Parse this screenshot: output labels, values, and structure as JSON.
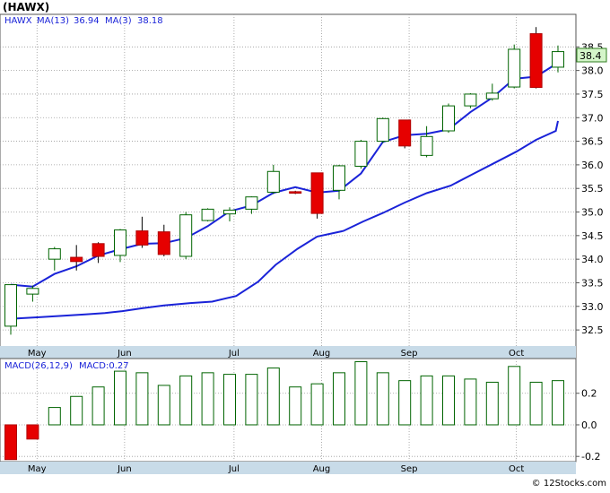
{
  "title": "(HAWX)",
  "legend": {
    "symbol": "HAWX",
    "ma13_label": "MA(13)",
    "ma13_value": "36.94",
    "ma3_label": "MA(3)",
    "ma3_value": "38.18"
  },
  "last_price_label": "38.4",
  "macd_legend": {
    "label": "MACD(26,12,9)",
    "value_label": "MACD:0.27"
  },
  "copyright": "© 12Stocks.com",
  "colors": {
    "up_candle": "#006400",
    "down_candle": "#e60000",
    "ma_line": "#1a23d8",
    "legend_text": "#1a23d8",
    "macd_bar": "#006400",
    "macd_negative": "#e60000",
    "axis_strip": "#c8dbe8"
  },
  "chart_data": [
    {
      "type": "candlestick",
      "x_labels": [
        "May",
        "Jun",
        "Jul",
        "Aug",
        "Sep",
        "Oct"
      ],
      "x_label_index": [
        1.2,
        5.2,
        10.2,
        14.2,
        18.2,
        23.1
      ],
      "y_ticks": [
        32.5,
        33.0,
        33.5,
        34.0,
        34.5,
        35.0,
        35.5,
        36.0,
        36.5,
        37.0,
        37.5,
        38.0,
        38.5
      ],
      "ylim": [
        32.16,
        39.19
      ],
      "candles": [
        {
          "o": 32.58,
          "h": 33.46,
          "l": 32.4,
          "c": 33.46
        },
        {
          "o": 33.26,
          "h": 33.44,
          "l": 33.1,
          "c": 33.38
        },
        {
          "o": 34.0,
          "h": 34.26,
          "l": 33.76,
          "c": 34.22
        },
        {
          "o": 34.04,
          "h": 34.3,
          "l": 33.76,
          "c": 33.95
        },
        {
          "o": 34.33,
          "h": 34.36,
          "l": 33.92,
          "c": 34.06
        },
        {
          "o": 34.08,
          "h": 34.64,
          "l": 33.94,
          "c": 34.62
        },
        {
          "o": 34.6,
          "h": 34.9,
          "l": 34.24,
          "c": 34.3
        },
        {
          "o": 34.58,
          "h": 34.73,
          "l": 34.06,
          "c": 34.1
        },
        {
          "o": 34.06,
          "h": 35.0,
          "l": 34.0,
          "c": 34.94
        },
        {
          "o": 34.82,
          "h": 35.08,
          "l": 34.8,
          "c": 35.06
        },
        {
          "o": 34.96,
          "h": 35.1,
          "l": 34.8,
          "c": 35.04
        },
        {
          "o": 35.06,
          "h": 35.33,
          "l": 34.96,
          "c": 35.32
        },
        {
          "o": 35.42,
          "h": 36.0,
          "l": 35.38,
          "c": 35.86
        },
        {
          "o": 35.43,
          "h": 35.45,
          "l": 35.38,
          "c": 35.4
        },
        {
          "o": 35.83,
          "h": 35.83,
          "l": 34.86,
          "c": 34.97
        },
        {
          "o": 35.46,
          "h": 36.0,
          "l": 35.27,
          "c": 35.98
        },
        {
          "o": 35.97,
          "h": 36.53,
          "l": 35.92,
          "c": 36.5
        },
        {
          "o": 36.5,
          "h": 37.0,
          "l": 36.46,
          "c": 36.98
        },
        {
          "o": 36.95,
          "h": 36.95,
          "l": 36.35,
          "c": 36.4
        },
        {
          "o": 36.2,
          "h": 36.82,
          "l": 36.16,
          "c": 36.6
        },
        {
          "o": 36.72,
          "h": 37.3,
          "l": 36.68,
          "c": 37.25
        },
        {
          "o": 37.25,
          "h": 37.52,
          "l": 37.2,
          "c": 37.5
        },
        {
          "o": 37.4,
          "h": 37.72,
          "l": 37.36,
          "c": 37.52
        },
        {
          "o": 37.65,
          "h": 38.55,
          "l": 37.62,
          "c": 38.45
        },
        {
          "o": 38.78,
          "h": 38.92,
          "l": 37.62,
          "c": 37.64
        },
        {
          "o": 38.07,
          "h": 38.53,
          "l": 37.96,
          "c": 38.4
        }
      ],
      "ma13": [
        32.74,
        32.77,
        32.8,
        32.83,
        32.86,
        32.9,
        32.96,
        33.02,
        33.07,
        33.1,
        33.22,
        33.52,
        33.88,
        34.22,
        34.48,
        34.6,
        34.8,
        34.98,
        35.2,
        35.4,
        35.56,
        35.8,
        36.04,
        36.28,
        36.53,
        36.72,
        36.93
      ],
      "ma13_x_index": [
        0.1,
        1.3,
        2.4,
        3.4,
        4.3,
        5.1,
        6.0,
        7.0,
        8.2,
        9.2,
        10.3,
        11.3,
        12.1,
        13.1,
        14.0,
        15.2,
        16.1,
        17.0,
        18.0,
        19.0,
        20.1,
        21.1,
        22.1,
        23.1,
        24.0,
        24.9,
        25.0
      ]
    },
    {
      "type": "bar",
      "title": "MACD(26,12,9)",
      "x_labels": [
        "May",
        "Jun",
        "Jul",
        "Aug",
        "Sep",
        "Oct"
      ],
      "y_ticks": [
        0.2,
        0.0,
        -0.2
      ],
      "y_tick_labels": [
        "0.2",
        "0.0",
        "-0.2"
      ],
      "ylim": [
        -0.233,
        0.42
      ],
      "values": [
        -0.22,
        -0.09,
        0.11,
        0.18,
        0.24,
        0.34,
        0.33,
        0.25,
        0.31,
        0.33,
        0.32,
        0.32,
        0.36,
        0.24,
        0.26,
        0.33,
        0.4,
        0.33,
        0.28,
        0.31,
        0.31,
        0.29,
        0.27,
        0.37,
        0.27,
        0.28
      ]
    }
  ]
}
